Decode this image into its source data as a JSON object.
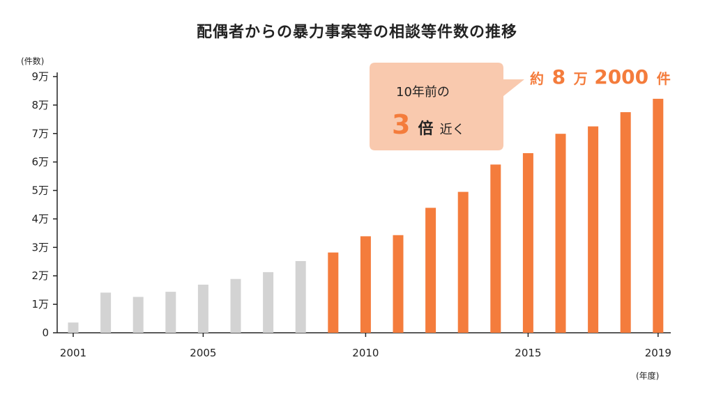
{
  "colors": {
    "past": "#d3d3d3",
    "recent": "#f47c3c",
    "bubble": "#f9c9ae",
    "axis": "#222222"
  },
  "chart_data": {
    "type": "bar",
    "title": "配偶者からの暴力事案等の相談等件数の推移",
    "ylabel": "(件数)",
    "xlabel": "(年度)",
    "ylim": [
      0,
      90000
    ],
    "y_ticks": [
      {
        "value": 0,
        "label": "0"
      },
      {
        "value": 10000,
        "label": "1万"
      },
      {
        "value": 20000,
        "label": "2万"
      },
      {
        "value": 30000,
        "label": "3万"
      },
      {
        "value": 40000,
        "label": "4万"
      },
      {
        "value": 50000,
        "label": "5万"
      },
      {
        "value": 60000,
        "label": "6万"
      },
      {
        "value": 70000,
        "label": "7万"
      },
      {
        "value": 80000,
        "label": "8万"
      },
      {
        "value": 90000,
        "label": "9万"
      }
    ],
    "x_tick_labels": [
      "2001",
      "2005",
      "2010",
      "2015",
      "2019"
    ],
    "categories": [
      2001,
      2002,
      2003,
      2004,
      2005,
      2006,
      2007,
      2008,
      2009,
      2010,
      2011,
      2012,
      2013,
      2014,
      2015,
      2016,
      2017,
      2018,
      2019
    ],
    "values": [
      3600,
      14100,
      12600,
      14400,
      16900,
      18900,
      21300,
      25200,
      28200,
      33900,
      34300,
      43900,
      49500,
      59100,
      63100,
      69900,
      72500,
      77500,
      82200
    ],
    "highlight_from": 2009,
    "grid": false
  },
  "annotation": {
    "bubble_line1": "10年前の",
    "bubble_big": "3",
    "bubble_mid": "倍",
    "bubble_end": "近く",
    "callout_prefix": "約",
    "callout_digit": "8",
    "callout_man": "万",
    "callout_number": "2000",
    "callout_suffix": "件"
  }
}
